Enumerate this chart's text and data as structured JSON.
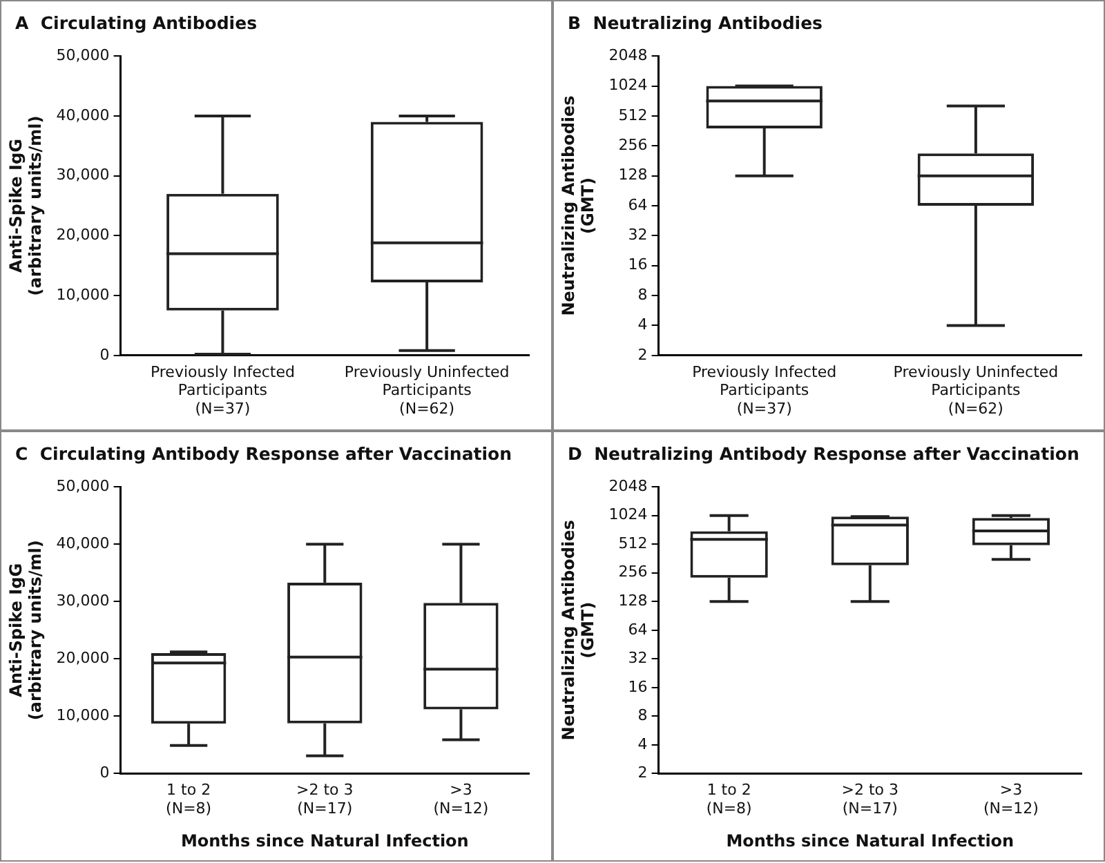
{
  "chart_data": [
    {
      "type": "box",
      "title": "A  Circulating Antibodies",
      "ylabel": "Anti-Spike IgG\n(arbitrary units/ml)",
      "categories": [
        "Previously Infected\nParticipants\n(N=37)",
        "Previously Uninfected\nParticipants\n(N=62)"
      ],
      "ylim": [
        0,
        50000
      ],
      "yticks": [
        0,
        {
          "value": 10000,
          "label": "10,000"
        },
        {
          "value": 20000,
          "label": "20,000"
        },
        {
          "value": 30000,
          "label": "30,000"
        },
        {
          "value": 40000,
          "label": "40,000"
        },
        {
          "value": 50000,
          "label": "50,000"
        }
      ],
      "grid": false,
      "color": "#222222",
      "boxes": [
        {
          "low": 200,
          "q1": 7500,
          "median": 17000,
          "q3": 27000,
          "high": 40000
        },
        {
          "low": 800,
          "q1": 12200,
          "median": 18800,
          "q3": 39000,
          "high": 40000
        }
      ]
    },
    {
      "type": "box",
      "title": "B  Neutralizing Antibodies",
      "ylabel": "Neutralizing Antibodies\n(GMT)",
      "categories": [
        "Previously Infected\nParticipants\n(N=37)",
        "Previously Uninfected\nParticipants\n(N=62)"
      ],
      "log": true,
      "ylim": [
        2,
        2048
      ],
      "yticks": [
        2,
        4,
        8,
        16,
        32,
        64,
        128,
        256,
        512,
        1024,
        2048
      ],
      "grid": false,
      "color": "#222222",
      "boxes": [
        {
          "low": 128,
          "q1": 384,
          "median": 724,
          "q3": 1024,
          "high": 1024
        },
        {
          "low": 4,
          "q1": 64,
          "median": 128,
          "q3": 215,
          "high": 645
        }
      ]
    },
    {
      "type": "box",
      "title": "C  Circulating Antibody Response after Vaccination",
      "ylabel": "Anti-Spike IgG\n(arbitrary units/ml)",
      "xlabel": "Months since Natural Infection",
      "categories": [
        "1 to 2\n(N=8)",
        ">2 to 3\n(N=17)",
        ">3\n(N=12)"
      ],
      "ylim": [
        0,
        50000
      ],
      "yticks": [
        0,
        {
          "value": 10000,
          "label": "10,000"
        },
        {
          "value": 20000,
          "label": "20,000"
        },
        {
          "value": 30000,
          "label": "30,000"
        },
        {
          "value": 40000,
          "label": "40,000"
        },
        {
          "value": 50000,
          "label": "50,000"
        }
      ],
      "grid": false,
      "color": "#222222",
      "boxes": [
        {
          "low": 4900,
          "q1": 8700,
          "median": 19300,
          "q3": 21000,
          "high": 21200
        },
        {
          "low": 3100,
          "q1": 8750,
          "median": 20300,
          "q3": 33300,
          "high": 40000
        },
        {
          "low": 5900,
          "q1": 11200,
          "median": 18200,
          "q3": 29750,
          "high": 40000
        }
      ]
    },
    {
      "type": "box",
      "title": "D  Neutralizing Antibody Response after Vaccination",
      "ylabel": "Neutralizing Antibodies\n(GMT)",
      "xlabel": "Months since Natural Infection",
      "categories": [
        "1 to 2\n(N=8)",
        ">2 to 3\n(N=17)",
        ">3\n(N=12)"
      ],
      "log": true,
      "ylim": [
        2,
        2048
      ],
      "yticks": [
        2,
        4,
        8,
        16,
        32,
        64,
        128,
        256,
        512,
        1024,
        2048
      ],
      "grid": false,
      "color": "#222222",
      "boxes": [
        {
          "low": 128,
          "q1": 228,
          "median": 575,
          "q3": 700,
          "high": 1024
        },
        {
          "low": 128,
          "q1": 308,
          "median": 813,
          "q3": 1000,
          "high": 1000
        },
        {
          "low": 354,
          "q1": 500,
          "median": 707,
          "q3": 967,
          "high": 1024
        }
      ]
    }
  ]
}
